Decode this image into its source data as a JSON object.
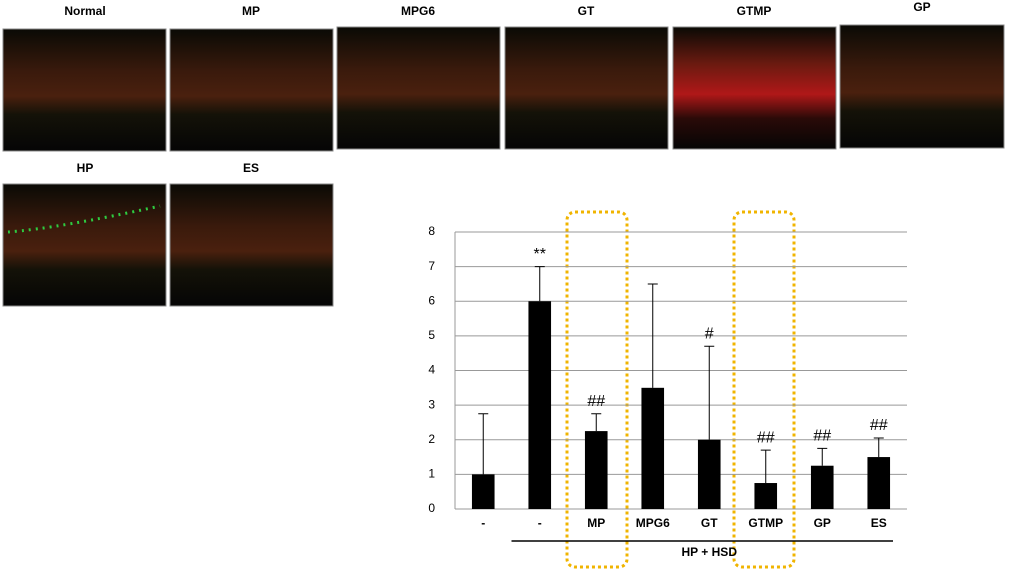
{
  "images": [
    "Normal",
    "MP",
    "MPG6",
    "GT",
    "GTMP",
    "GP",
    "HP",
    "ES"
  ],
  "chart_data": {
    "type": "bar",
    "categories": [
      "-",
      "-",
      "MP",
      "MPG6",
      "GT",
      "GTMP",
      "GP",
      "ES"
    ],
    "values": [
      1,
      6,
      2.25,
      3.5,
      2,
      0.75,
      1.25,
      1.5
    ],
    "errors": [
      1.75,
      1,
      0.5,
      3,
      2.7,
      0.95,
      0.5,
      0.55
    ],
    "annotations": [
      null,
      "**",
      "##",
      null,
      "#",
      "##",
      "##",
      "##"
    ],
    "group_label": "HP + HSD",
    "color": "#000000",
    "ylim": [
      0,
      8
    ],
    "yticks": [
      0,
      1,
      2,
      3,
      4,
      5,
      6,
      7,
      8
    ],
    "grid": true
  }
}
